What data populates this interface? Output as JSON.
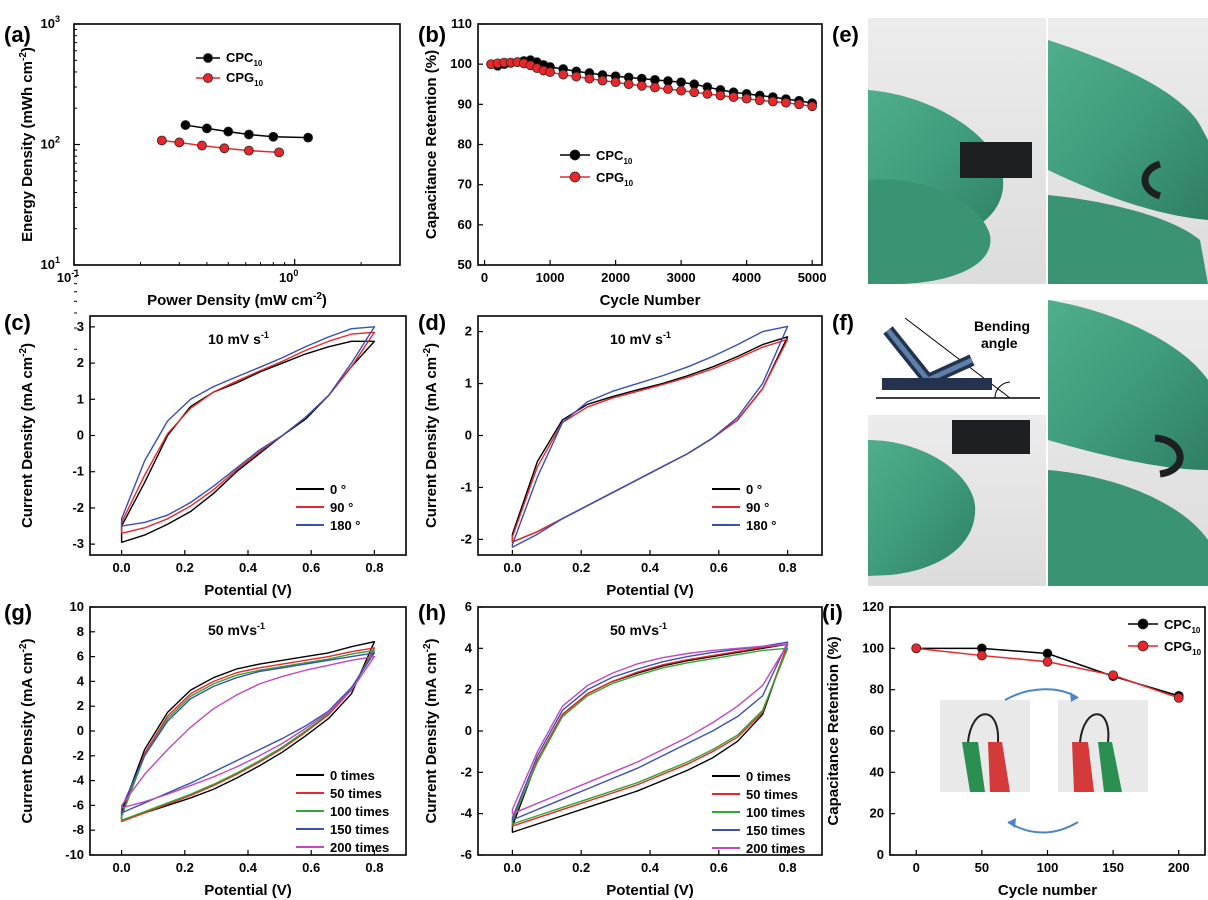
{
  "panels": {
    "a": {
      "letter": "(a)",
      "chart_data": {
        "type": "scatter",
        "xscale": "log",
        "yscale": "log",
        "xlim": [
          0.1,
          3
        ],
        "ylim": [
          10,
          1000
        ],
        "xlabel": "Power Density (mW cm",
        "xlabel_sup": "-2",
        "xlabel_end": ")",
        "ylabel": "Energy Density (mWh cm",
        "ylabel_sup": "-2",
        "ylabel_end": ")",
        "xticks": [
          {
            "v": 0.1,
            "base": "10",
            "exp": "-1"
          },
          {
            "v": 1,
            "base": "10",
            "exp": "0"
          }
        ],
        "yticks": [
          {
            "v": 10,
            "base": "10",
            "exp": "1"
          },
          {
            "v": 100,
            "base": "10",
            "exp": "2"
          },
          {
            "v": 1000,
            "base": "10",
            "exp": "3"
          }
        ],
        "legend": "top-center",
        "series": [
          {
            "name": "CPC",
            "sub": "10",
            "color": "#000000",
            "x": [
              0.32,
              0.4,
              0.5,
              0.62,
              0.8,
              1.15
            ],
            "y": [
              145,
              136,
              128,
              121,
              116,
              114
            ]
          },
          {
            "name": "CPG",
            "sub": "10",
            "color": "#e8272b",
            "x": [
              0.25,
              0.3,
              0.38,
              0.48,
              0.62,
              0.85
            ],
            "y": [
              108,
              104,
              98,
              93,
              89,
              86
            ]
          }
        ]
      }
    },
    "b": {
      "letter": "(b)",
      "chart_data": {
        "type": "scatter",
        "xlim": [
          -100,
          5150
        ],
        "ylim": [
          50,
          110
        ],
        "xlabel": "Cycle Number",
        "ylabel": "Capacitance Retention (%)",
        "xticks": [
          0,
          1000,
          2000,
          3000,
          4000,
          5000
        ],
        "yticks": [
          50,
          60,
          70,
          80,
          90,
          100,
          110
        ],
        "legend": "center-left",
        "series": [
          {
            "name": "CPC",
            "sub": "10",
            "color": "#000000",
            "x": [
              100,
              200,
              300,
              400,
              500,
              600,
              700,
              800,
              900,
              1000,
              1200,
              1400,
              1600,
              1800,
              2000,
              2200,
              2400,
              2600,
              2800,
              3000,
              3200,
              3400,
              3600,
              3800,
              4000,
              4200,
              4400,
              4600,
              4800,
              5000
            ],
            "y": [
              100,
              99.6,
              100,
              100.3,
              100.5,
              100.8,
              101,
              100.5,
              99.8,
              99.3,
              98.8,
              98.2,
              97.8,
              97.3,
              97,
              96.7,
              96.4,
              96.1,
              95.8,
              95.5,
              95,
              94.3,
              93.6,
              93,
              92.6,
              92.2,
              91.8,
              91.3,
              90.9,
              90.3
            ]
          },
          {
            "name": "CPG",
            "sub": "10",
            "color": "#e8272b",
            "x": [
              100,
              200,
              300,
              400,
              500,
              600,
              700,
              800,
              900,
              1000,
              1200,
              1400,
              1600,
              1800,
              2000,
              2200,
              2400,
              2600,
              2800,
              3000,
              3200,
              3400,
              3600,
              3800,
              4000,
              4200,
              4400,
              4600,
              4800,
              5000
            ],
            "y": [
              100,
              100.2,
              100.4,
              100.4,
              100.5,
              100.2,
              99.7,
              99,
              98.4,
              98,
              97.4,
              96.9,
              96.4,
              95.9,
              95.5,
              95,
              94.6,
              94.2,
              93.8,
              93.4,
              93,
              92.6,
              92.2,
              91.8,
              91.4,
              91,
              90.7,
              90.4,
              90,
              89.5
            ]
          }
        ]
      }
    },
    "c": {
      "letter": "(c)",
      "chart_data": {
        "type": "line",
        "annotation": "10 mV s",
        "annotation_sup": "-1",
        "xlim": [
          -0.1,
          0.9
        ],
        "ylim": [
          -3.3,
          3.3
        ],
        "xlabel": "Potential (V)",
        "ylabel": "Current Density (mA cm",
        "ylabel_sup": "-2",
        "ylabel_end": ")",
        "xticks": [
          "0.0",
          "0.2",
          "0.4",
          "0.6",
          "0.8"
        ],
        "yticks": [
          "-3",
          "-2",
          "-1",
          "0",
          "1",
          "2",
          "3"
        ],
        "legend": "bottom-right",
        "series": [
          {
            "name": "0 °",
            "color": "#000000",
            "top": [
              -2.5,
              -1.3,
              0.0,
              0.8,
              1.2,
              1.45,
              1.75,
              2.0,
              2.25,
              2.45,
              2.6,
              2.6
            ],
            "bot": [
              -2.95,
              -2.75,
              -2.45,
              -2.1,
              -1.6,
              -1.0,
              -0.5,
              0.0,
              0.45,
              1.1,
              1.9,
              2.6
            ]
          },
          {
            "name": "90 °",
            "color": "#e8272b",
            "top": [
              -2.4,
              -1.1,
              0.05,
              0.75,
              1.2,
              1.5,
              1.78,
              2.05,
              2.35,
              2.6,
              2.8,
              2.85
            ],
            "bot": [
              -2.7,
              -2.55,
              -2.3,
              -1.95,
              -1.5,
              -0.95,
              -0.45,
              0.0,
              0.5,
              1.1,
              1.9,
              2.85
            ]
          },
          {
            "name": "180 °",
            "color": "#3a4fb5",
            "top": [
              -2.3,
              -0.7,
              0.4,
              1.0,
              1.35,
              1.62,
              1.88,
              2.15,
              2.45,
              2.72,
              2.95,
              3.0
            ],
            "bot": [
              -2.5,
              -2.4,
              -2.2,
              -1.85,
              -1.4,
              -0.9,
              -0.4,
              0.0,
              0.5,
              1.1,
              2.0,
              3.0
            ]
          }
        ]
      }
    },
    "d": {
      "letter": "(d)",
      "chart_data": {
        "type": "line",
        "annotation": "10 mV s",
        "annotation_sup": "-1",
        "xlim": [
          -0.1,
          0.9
        ],
        "ylim": [
          -2.3,
          2.3
        ],
        "xlabel": "Potential (V)",
        "ylabel": "Current Density (mA cm",
        "ylabel_sup": "-2",
        "ylabel_end": ")",
        "xticks": [
          "0.0",
          "0.2",
          "0.4",
          "0.6",
          "0.8"
        ],
        "yticks": [
          "-2",
          "-1",
          "0",
          "1",
          "2"
        ],
        "legend": "bottom-right",
        "series": [
          {
            "name": "0 °",
            "color": "#000000",
            "top": [
              -1.9,
              -0.5,
              0.3,
              0.6,
              0.75,
              0.88,
              1.0,
              1.15,
              1.32,
              1.52,
              1.75,
              1.9
            ],
            "bot": [
              -2.05,
              -1.85,
              -1.6,
              -1.35,
              -1.1,
              -0.85,
              -0.6,
              -0.35,
              -0.05,
              0.3,
              0.9,
              1.9
            ]
          },
          {
            "name": "90 °",
            "color": "#e8272b",
            "top": [
              -1.95,
              -0.6,
              0.25,
              0.55,
              0.72,
              0.85,
              0.98,
              1.12,
              1.28,
              1.48,
              1.7,
              1.85
            ],
            "bot": [
              -2.05,
              -1.85,
              -1.6,
              -1.35,
              -1.1,
              -0.85,
              -0.6,
              -0.35,
              -0.05,
              0.3,
              0.9,
              1.85
            ]
          },
          {
            "name": "180 °",
            "color": "#3a4fb5",
            "top": [
              -2.1,
              -0.8,
              0.25,
              0.65,
              0.85,
              1.0,
              1.15,
              1.32,
              1.52,
              1.75,
              2.0,
              2.1
            ],
            "bot": [
              -2.15,
              -1.9,
              -1.6,
              -1.35,
              -1.1,
              -0.85,
              -0.6,
              -0.35,
              -0.05,
              0.35,
              1.0,
              2.1
            ]
          }
        ]
      }
    },
    "e": {
      "letter": "(e)"
    },
    "f": {
      "letter": "(f)",
      "diagram_text": [
        "Bending",
        "angle"
      ]
    },
    "g": {
      "letter": "(g)",
      "chart_data": {
        "type": "line",
        "annotation": "50 mVs",
        "annotation_sup": "-1",
        "xlim": [
          -0.1,
          0.9
        ],
        "ylim": [
          -10,
          10
        ],
        "xlabel": "Potential (V)",
        "ylabel": "Current Density (mA cm",
        "ylabel_sup": "-2",
        "ylabel_end": ")",
        "xticks": [
          "0.0",
          "0.2",
          "0.4",
          "0.6",
          "0.8"
        ],
        "yticks": [
          "-10",
          "-8",
          "-6",
          "-4",
          "-2",
          "0",
          "2",
          "4",
          "6",
          "8",
          "10"
        ],
        "legend": "bottom-right",
        "series": [
          {
            "name": "0    times",
            "color": "#000000",
            "top": [
              -6.5,
              -1.5,
              1.5,
              3.3,
              4.3,
              5.0,
              5.4,
              5.7,
              6.0,
              6.3,
              6.8,
              7.2
            ],
            "bot": [
              -7.2,
              -6.6,
              -6.0,
              -5.4,
              -4.7,
              -3.8,
              -2.8,
              -1.7,
              -0.4,
              1.0,
              3.0,
              7.2
            ]
          },
          {
            "name": "50   times",
            "color": "#e8272b",
            "top": [
              -6.8,
              -1.8,
              1.2,
              3.0,
              4.0,
              4.7,
              5.1,
              5.4,
              5.7,
              6.0,
              6.4,
              6.7
            ],
            "bot": [
              -7.3,
              -6.6,
              -5.9,
              -5.2,
              -4.4,
              -3.5,
              -2.5,
              -1.4,
              -0.1,
              1.3,
              3.3,
              6.7
            ]
          },
          {
            "name": "100 times",
            "color": "#2fa82f",
            "top": [
              -6.9,
              -2.0,
              1.0,
              2.8,
              3.8,
              4.5,
              4.9,
              5.2,
              5.5,
              5.8,
              6.2,
              6.5
            ],
            "bot": [
              -7.2,
              -6.5,
              -5.8,
              -5.1,
              -4.3,
              -3.4,
              -2.4,
              -1.3,
              0.0,
              1.4,
              3.4,
              6.5
            ]
          },
          {
            "name": "150 times",
            "color": "#3a4fb5",
            "top": [
              -6.2,
              -2.0,
              0.8,
              2.6,
              3.6,
              4.3,
              4.8,
              5.1,
              5.4,
              5.7,
              6.0,
              6.3
            ],
            "bot": [
              -6.6,
              -5.8,
              -5.0,
              -4.2,
              -3.3,
              -2.4,
              -1.5,
              -0.6,
              0.4,
              1.6,
              3.5,
              6.3
            ]
          },
          {
            "name": "200 times",
            "color": "#c048c0",
            "top": [
              -6.0,
              -3.5,
              -1.5,
              0.3,
              1.8,
              2.9,
              3.8,
              4.4,
              4.9,
              5.3,
              5.7,
              6.0
            ],
            "bot": [
              -6.2,
              -5.7,
              -5.1,
              -4.4,
              -3.7,
              -2.9,
              -2.0,
              -1.0,
              0.2,
              1.5,
              3.3,
              6.0
            ]
          }
        ]
      }
    },
    "h": {
      "letter": "(h)",
      "chart_data": {
        "type": "line",
        "annotation": "50 mVs",
        "annotation_sup": "-1",
        "xlim": [
          -0.1,
          0.9
        ],
        "ylim": [
          -6,
          6
        ],
        "xlabel": "Potential (V)",
        "ylabel": "Current Density (mA cm",
        "ylabel_sup": "-2",
        "ylabel_end": ")",
        "xticks": [
          "0.0",
          "0.2",
          "0.4",
          "0.6",
          "0.8"
        ],
        "yticks": [
          "-6",
          "-4",
          "-2",
          "0",
          "2",
          "4",
          "6"
        ],
        "legend": "bottom-right",
        "series": [
          {
            "name": "0    times",
            "color": "#000000",
            "top": [
              -4.6,
              -1.4,
              0.8,
              1.8,
              2.4,
              2.8,
              3.15,
              3.4,
              3.6,
              3.8,
              4.0,
              4.2
            ],
            "bot": [
              -4.9,
              -4.5,
              -4.1,
              -3.7,
              -3.3,
              -2.9,
              -2.4,
              -1.9,
              -1.3,
              -0.5,
              0.8,
              4.2
            ]
          },
          {
            "name": "50   times",
            "color": "#e8272b",
            "top": [
              -4.4,
              -1.4,
              0.8,
              1.8,
              2.4,
              2.85,
              3.2,
              3.45,
              3.65,
              3.85,
              4.05,
              4.2
            ],
            "bot": [
              -4.6,
              -4.2,
              -3.8,
              -3.4,
              -3.0,
              -2.6,
              -2.1,
              -1.6,
              -1.0,
              -0.3,
              0.9,
              4.2
            ]
          },
          {
            "name": "100 times",
            "color": "#2fa82f",
            "top": [
              -4.3,
              -1.5,
              0.7,
              1.7,
              2.3,
              2.7,
              3.05,
              3.3,
              3.5,
              3.7,
              3.9,
              4.0
            ],
            "bot": [
              -4.5,
              -4.1,
              -3.7,
              -3.3,
              -2.9,
              -2.5,
              -2.0,
              -1.5,
              -0.9,
              -0.2,
              1.0,
              4.0
            ]
          },
          {
            "name": "150 times",
            "color": "#3a4fb5",
            "top": [
              -4.2,
              -1.2,
              1.0,
              2.0,
              2.6,
              3.0,
              3.35,
              3.6,
              3.8,
              3.95,
              4.1,
              4.3
            ],
            "bot": [
              -4.3,
              -3.8,
              -3.3,
              -2.8,
              -2.3,
              -1.8,
              -1.2,
              -0.6,
              0.0,
              0.7,
              1.7,
              4.3
            ]
          },
          {
            "name": "200 times",
            "color": "#c048c0",
            "top": [
              -3.8,
              -1.0,
              1.2,
              2.2,
              2.8,
              3.25,
              3.55,
              3.75,
              3.9,
              4.0,
              4.1,
              4.2
            ],
            "bot": [
              -4.0,
              -3.5,
              -3.0,
              -2.5,
              -2.0,
              -1.5,
              -0.9,
              -0.3,
              0.4,
              1.2,
              2.2,
              4.2
            ]
          }
        ]
      }
    },
    "i": {
      "letter": "(i)",
      "chart_data": {
        "type": "line",
        "xlim": [
          -20,
          220
        ],
        "ylim": [
          0,
          120
        ],
        "xlabel": "Cycle number",
        "ylabel": "Capacitance Retention (%)",
        "xticks": [
          0,
          50,
          100,
          150,
          200
        ],
        "yticks": [
          0,
          20,
          40,
          60,
          80,
          100,
          120
        ],
        "legend": "top-right",
        "series": [
          {
            "name": "CPC",
            "sub": "10",
            "color": "#000000",
            "x": [
              0,
              50,
              100,
              150,
              200
            ],
            "y": [
              100,
              100,
              97.5,
              86.5,
              77
            ]
          },
          {
            "name": "CPG",
            "sub": "10",
            "color": "#e8272b",
            "x": [
              0,
              50,
              100,
              150,
              200
            ],
            "y": [
              100,
              96.5,
              93.5,
              87,
              76
            ]
          }
        ]
      }
    }
  }
}
